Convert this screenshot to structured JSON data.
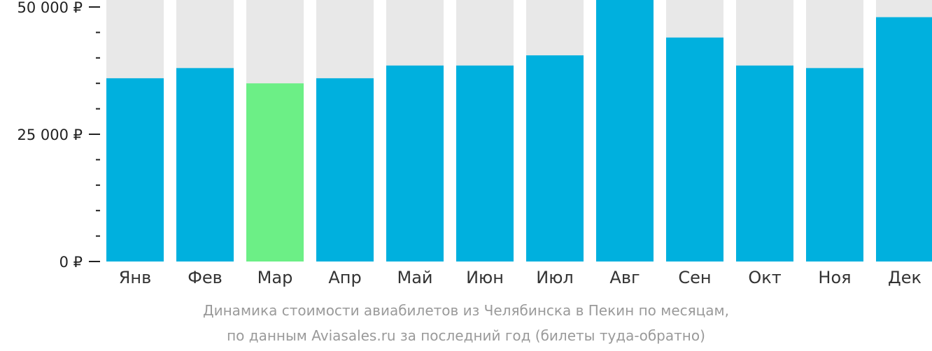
{
  "chart_data": {
    "type": "bar",
    "categories": [
      "Янв",
      "Фев",
      "Мар",
      "Апр",
      "Май",
      "Июн",
      "Июл",
      "Авг",
      "Сен",
      "Окт",
      "Ноя",
      "Дек"
    ],
    "values": [
      36000,
      38000,
      35000,
      36000,
      38500,
      38500,
      40500,
      53000,
      44000,
      38500,
      38000,
      48000
    ],
    "highlight_index": 2,
    "ylim": [
      0,
      53000
    ],
    "yticks_major": [
      0,
      25000,
      50000
    ],
    "ytick_labels": [
      "0 ₽",
      "25 000 ₽",
      "50 000 ₽"
    ],
    "ytick_minor_step": 5000,
    "colors": {
      "bar": "#00B0DE",
      "bar_highlight": "#6CEF86",
      "bar_background": "#E8E8E8",
      "axis": "#222222"
    },
    "caption_line1": "Динамика стоимости авиабилетов из Челябинска в Пекин по месяцам,",
    "caption_line2": "по данным Aviasales.ru за последний год (билеты туда-обратно)"
  }
}
